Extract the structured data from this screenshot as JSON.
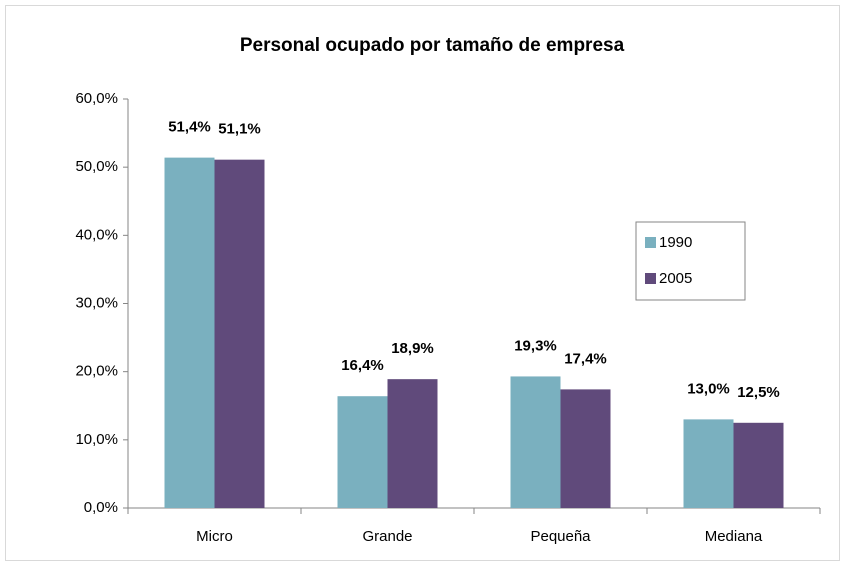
{
  "chart_data": {
    "type": "bar",
    "title": "Personal ocupado por tamaño de empresa",
    "categories": [
      "Micro",
      "Grande",
      "Pequeña",
      "Mediana"
    ],
    "series": [
      {
        "name": "1990",
        "color": "#7ab0bf",
        "label_color": "#31859c",
        "values": [
          51.4,
          16.4,
          19.3,
          13.0
        ],
        "value_labels": [
          "51,4%",
          "16,4%",
          "19,3%",
          "13,0%"
        ]
      },
      {
        "name": "2005",
        "color": "#604a7b",
        "label_color": "#604a7b",
        "values": [
          51.1,
          18.9,
          17.4,
          12.5
        ],
        "value_labels": [
          "51,1%",
          "18,9%",
          "17,4%",
          "12,5%"
        ]
      }
    ],
    "ylim": [
      0,
      60
    ],
    "yticks": [
      {
        "value": 0,
        "label": "0,0%"
      },
      {
        "value": 10,
        "label": "10,0%"
      },
      {
        "value": 20,
        "label": "20,0%"
      },
      {
        "value": 30,
        "label": "30,0%"
      },
      {
        "value": 40,
        "label": "40,0%"
      },
      {
        "value": 50,
        "label": "50,0%"
      },
      {
        "value": 60,
        "label": "60,0%"
      }
    ],
    "grid": false,
    "legend": "right"
  }
}
